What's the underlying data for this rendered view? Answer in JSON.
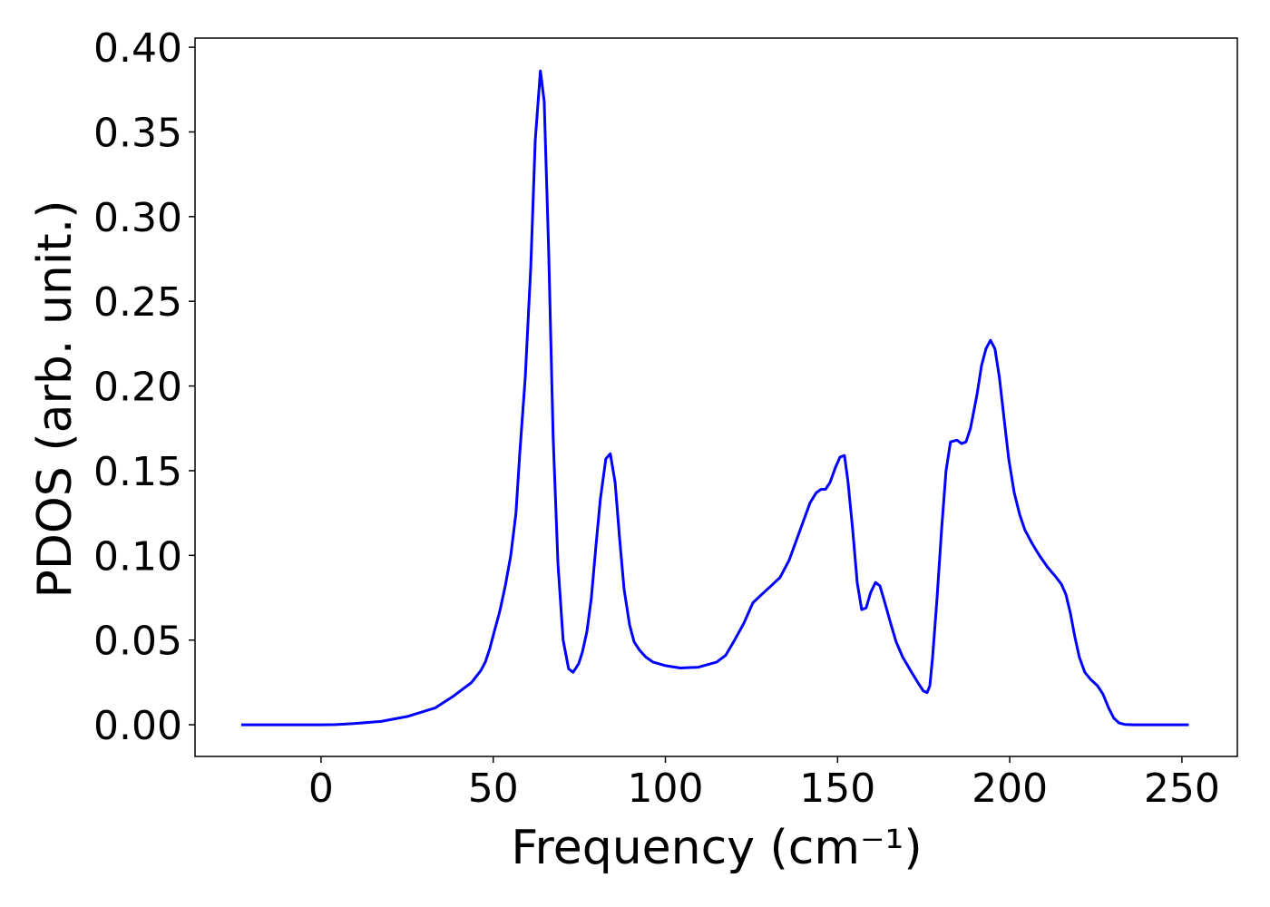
{
  "chart_data": {
    "type": "line",
    "x_label": "Frequency (cm⁻¹)",
    "y_label": "PDOS (arb. unit.)",
    "xlim": [
      -36.6,
      266.1
    ],
    "ylim": [
      -0.0187,
      0.4054
    ],
    "xticks": [
      0,
      50,
      100,
      150,
      200,
      250
    ],
    "yticks": [
      {
        "value": 0,
        "label": "0.00"
      },
      {
        "value": 0.05,
        "label": "0.05"
      },
      {
        "value": 0.1,
        "label": "0.10"
      },
      {
        "value": 0.15,
        "label": "0.15"
      },
      {
        "value": 0.2,
        "label": "0.20"
      },
      {
        "value": 0.25,
        "label": "0.25"
      },
      {
        "value": 0.3,
        "label": "0.30"
      },
      {
        "value": 0.35,
        "label": "0.35"
      },
      {
        "value": 0.4,
        "label": "0.40"
      }
    ],
    "grid": false,
    "x": [
      -23.2,
      0,
      4.2,
      9.5,
      17.4,
      25.3,
      33.2,
      38.5,
      43.7,
      46.4,
      47.7,
      49,
      50.3,
      51.9,
      53.5,
      55.1,
      56.6,
      57.7,
      59.3,
      60.9,
      62.2,
      63.7,
      64.8,
      66.1,
      67.4,
      68.8,
      70.3,
      71.9,
      73.2,
      74.8,
      75.9,
      77.2,
      78.5,
      79.8,
      81.1,
      82.7,
      84,
      85.4,
      86.7,
      88,
      89.6,
      90.9,
      92.5,
      94.3,
      96.4,
      99.8,
      104.3,
      109.6,
      114.9,
      117.5,
      120.1,
      122.8,
      125.4,
      128,
      130.7,
      133.3,
      135.9,
      138.6,
      142,
      143.8,
      145.2,
      146.5,
      147.8,
      149.4,
      150.7,
      152,
      153,
      154.4,
      155.7,
      157,
      158.3,
      159.6,
      161,
      162.3,
      163.6,
      165.4,
      167,
      168.9,
      171.5,
      173.6,
      174.9,
      176,
      176.8,
      177.6,
      178.9,
      180.2,
      181.5,
      182.8,
      184.7,
      186,
      187.3,
      188.6,
      190.5,
      191.8,
      193.1,
      194.4,
      195.7,
      197,
      198.4,
      199.7,
      201.3,
      202.9,
      204.4,
      206.5,
      208.6,
      211,
      213.1,
      215,
      216.3,
      217.6,
      218.9,
      220.2,
      221.8,
      223.4,
      225.5,
      227.1,
      228.7,
      230.2,
      231.8,
      233.4,
      236,
      252
    ],
    "series": [
      {
        "name": "PDOS",
        "color": "#0000ff",
        "values": [
          0,
          0,
          0.0001,
          0.0007,
          0.002,
          0.005,
          0.01,
          0.017,
          0.025,
          0.032,
          0.037,
          0.045,
          0.055,
          0.067,
          0.082,
          0.1,
          0.125,
          0.16,
          0.205,
          0.27,
          0.345,
          0.386,
          0.368,
          0.28,
          0.17,
          0.095,
          0.05,
          0.033,
          0.031,
          0.036,
          0.043,
          0.055,
          0.075,
          0.105,
          0.133,
          0.157,
          0.16,
          0.143,
          0.11,
          0.08,
          0.059,
          0.049,
          0.044,
          0.04,
          0.037,
          0.035,
          0.0335,
          0.034,
          0.037,
          0.041,
          0.05,
          0.06,
          0.072,
          0.077,
          0.082,
          0.087,
          0.097,
          0.112,
          0.131,
          0.137,
          0.139,
          0.139,
          0.143,
          0.152,
          0.158,
          0.159,
          0.144,
          0.115,
          0.084,
          0.068,
          0.069,
          0.078,
          0.084,
          0.082,
          0.073,
          0.06,
          0.049,
          0.04,
          0.031,
          0.024,
          0.02,
          0.019,
          0.023,
          0.04,
          0.075,
          0.115,
          0.15,
          0.167,
          0.168,
          0.166,
          0.167,
          0.175,
          0.195,
          0.212,
          0.222,
          0.227,
          0.222,
          0.205,
          0.18,
          0.157,
          0.137,
          0.124,
          0.115,
          0.107,
          0.1,
          0.093,
          0.088,
          0.083,
          0.077,
          0.066,
          0.052,
          0.04,
          0.031,
          0.027,
          0.023,
          0.018,
          0.01,
          0.004,
          0.001,
          0.0002,
          0,
          0
        ]
      }
    ]
  }
}
